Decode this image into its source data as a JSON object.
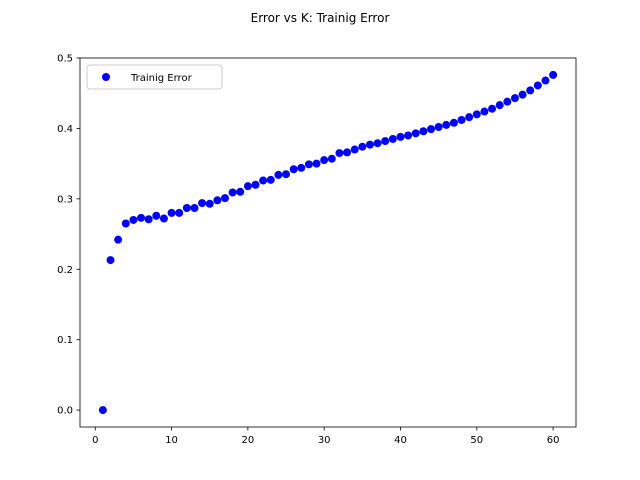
{
  "chart_data": {
    "type": "scatter",
    "title": "Error vs K: Trainig Error",
    "xlabel": "",
    "ylabel": "",
    "xlim": [
      -2.0,
      63.0
    ],
    "ylim": [
      -0.024,
      0.5
    ],
    "xticks": [
      0,
      10,
      20,
      30,
      40,
      50,
      60
    ],
    "yticks": [
      0.0,
      0.1,
      0.2,
      0.3,
      0.4,
      0.5
    ],
    "xtick_labels": [
      "0",
      "10",
      "20",
      "30",
      "40",
      "50",
      "60"
    ],
    "ytick_labels": [
      "0.0",
      "0.1",
      "0.2",
      "0.3",
      "0.4",
      "0.5"
    ],
    "grid": false,
    "legend": {
      "placement": "top-left"
    },
    "series": [
      {
        "name": "Trainig Error",
        "color": "#0000ff",
        "marker": "circle",
        "x": [
          1,
          2,
          3,
          4,
          5,
          6,
          7,
          8,
          9,
          10,
          11,
          12,
          13,
          14,
          15,
          16,
          17,
          18,
          19,
          20,
          21,
          22,
          23,
          24,
          25,
          26,
          27,
          28,
          29,
          30,
          31,
          32,
          33,
          34,
          35,
          36,
          37,
          38,
          39,
          40,
          41,
          42,
          43,
          44,
          45,
          46,
          47,
          48,
          49,
          50,
          51,
          52,
          53,
          54,
          55,
          56,
          57,
          58,
          59,
          60
        ],
        "y": [
          0.0,
          0.213,
          0.242,
          0.265,
          0.27,
          0.273,
          0.271,
          0.276,
          0.272,
          0.28,
          0.28,
          0.287,
          0.287,
          0.294,
          0.293,
          0.298,
          0.301,
          0.309,
          0.31,
          0.318,
          0.32,
          0.326,
          0.327,
          0.334,
          0.335,
          0.342,
          0.344,
          0.349,
          0.35,
          0.355,
          0.357,
          0.365,
          0.366,
          0.37,
          0.374,
          0.377,
          0.379,
          0.382,
          0.385,
          0.388,
          0.39,
          0.393,
          0.396,
          0.399,
          0.402,
          0.405,
          0.408,
          0.412,
          0.416,
          0.42,
          0.424,
          0.428,
          0.433,
          0.438,
          0.443,
          0.448,
          0.454,
          0.461,
          0.468,
          0.476
        ]
      }
    ]
  }
}
